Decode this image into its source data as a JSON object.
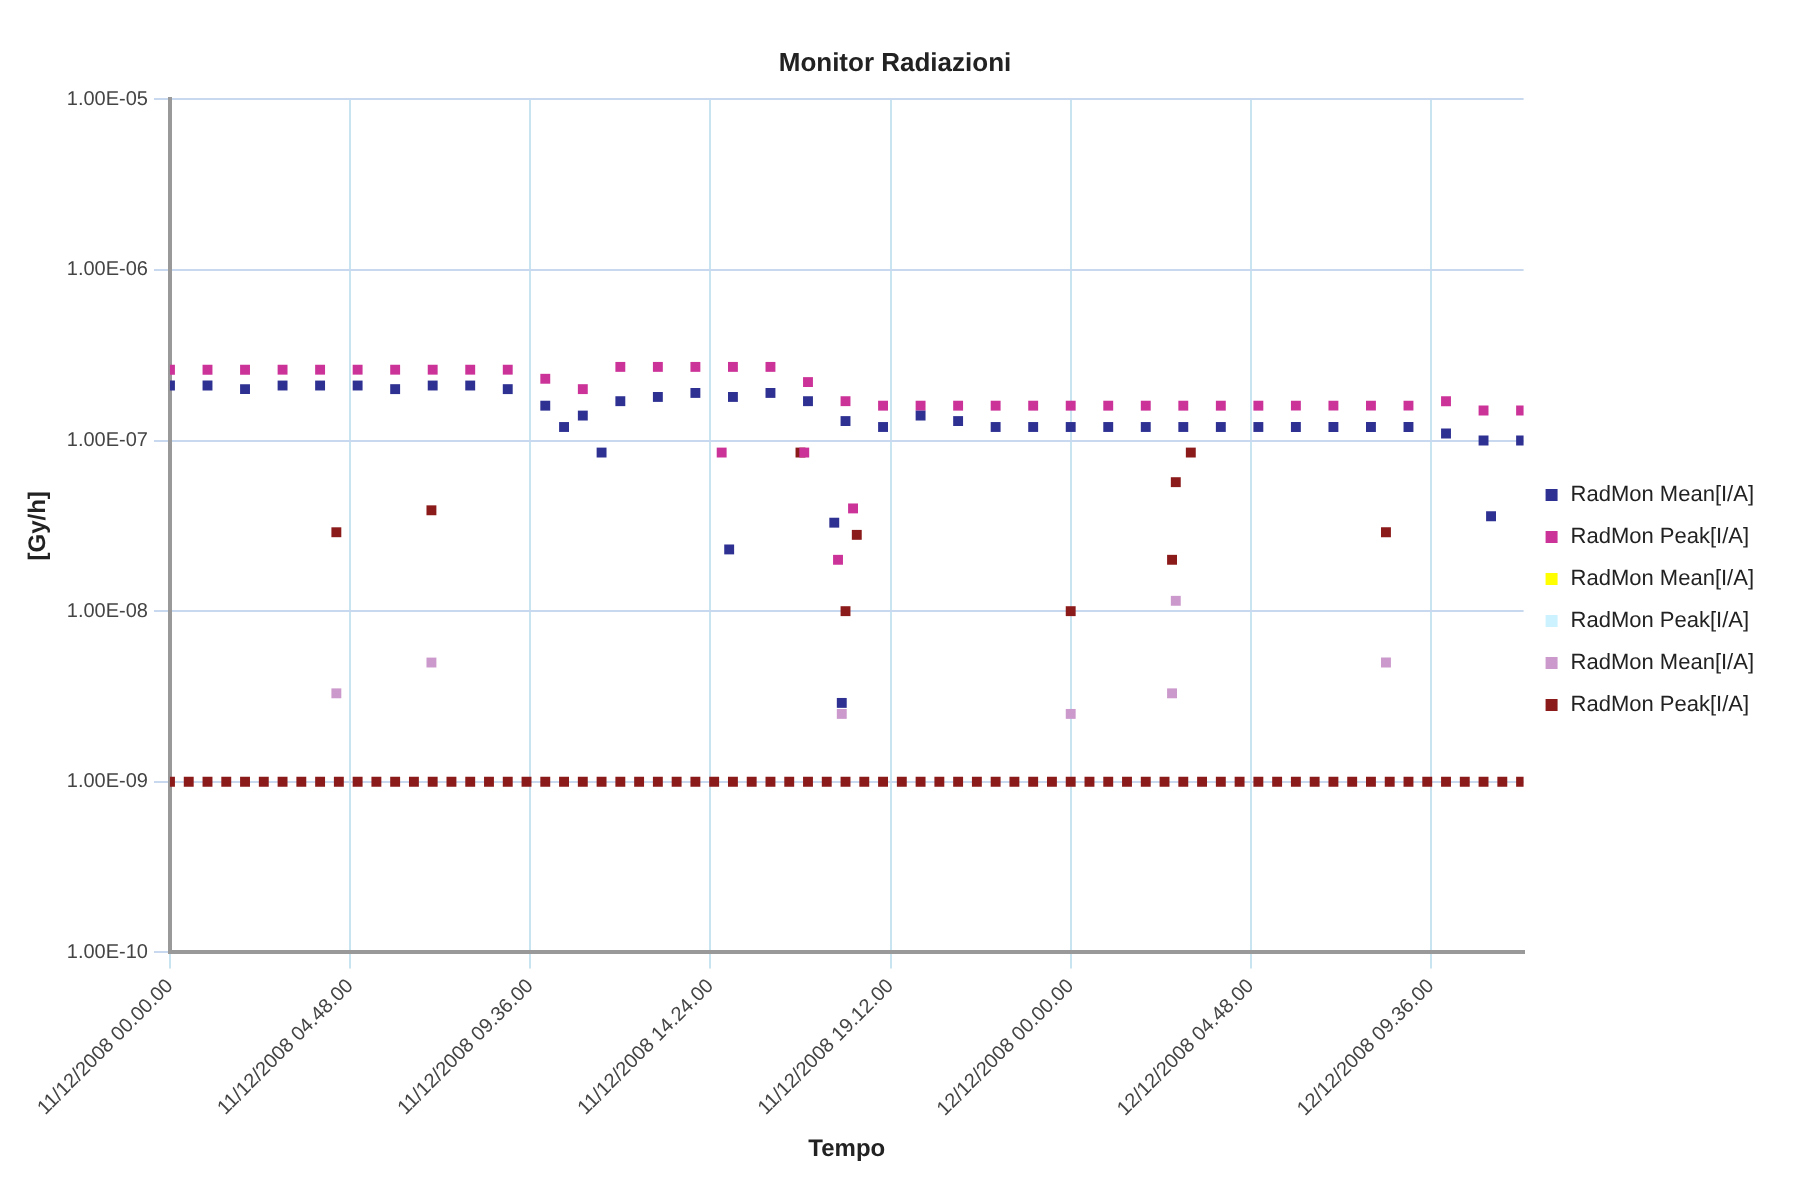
{
  "chart_data": {
    "type": "scatter",
    "title": "Monitor Radiazioni",
    "xlabel": "Tempo",
    "ylabel": "[Gy/h]",
    "log": "y",
    "grid": true,
    "legend": "right",
    "marker": "square",
    "xlim": [
      "2008-12-11T00:00",
      "2008-12-12T12:04"
    ],
    "xticks": [
      {
        "value": "2008-12-11T00:00",
        "label": "11/12/2008 00.00.00"
      },
      {
        "value": "2008-12-11T04:48",
        "label": "11/12/2008 04.48.00"
      },
      {
        "value": "2008-12-11T09:36",
        "label": "11/12/2008 09.36.00"
      },
      {
        "value": "2008-12-11T14:24",
        "label": "11/12/2008 14.24.00"
      },
      {
        "value": "2008-12-11T19:12",
        "label": "11/12/2008 19.12.00"
      },
      {
        "value": "2008-12-12T00:00",
        "label": "12/12/2008 00.00.00"
      },
      {
        "value": "2008-12-12T04:48",
        "label": "12/12/2008 04.48.00"
      },
      {
        "value": "2008-12-12T09:36",
        "label": "12/12/2008 09.36.00"
      }
    ],
    "ylim": [
      1e-10,
      1e-05
    ],
    "yticks": [
      {
        "value": 1e-10,
        "label": "1.00E-10"
      },
      {
        "value": 1e-09,
        "label": "1.00E-09"
      },
      {
        "value": 1e-08,
        "label": "1.00E-08"
      },
      {
        "value": 1e-07,
        "label": "1.00E-07"
      },
      {
        "value": 1e-06,
        "label": "1.00E-06"
      },
      {
        "value": 1e-05,
        "label": "1.00E-05"
      }
    ],
    "series": [
      {
        "name": "RadMon Mean[I/A]",
        "color": "#2e3192",
        "x": [
          "2008-12-11T00:00",
          "2008-12-11T01:00",
          "2008-12-11T02:00",
          "2008-12-11T03:00",
          "2008-12-11T04:00",
          "2008-12-11T05:00",
          "2008-12-11T06:00",
          "2008-12-11T07:00",
          "2008-12-11T08:00",
          "2008-12-11T09:00",
          "2008-12-11T10:00",
          "2008-12-11T10:30",
          "2008-12-11T11:00",
          "2008-12-11T11:30",
          "2008-12-11T12:00",
          "2008-12-11T13:00",
          "2008-12-11T14:00",
          "2008-12-11T14:54",
          "2008-12-11T15:00",
          "2008-12-11T16:00",
          "2008-12-11T17:00",
          "2008-12-11T17:42",
          "2008-12-11T17:54",
          "2008-12-11T18:00",
          "2008-12-11T19:00",
          "2008-12-11T20:00",
          "2008-12-11T21:00",
          "2008-12-11T22:00",
          "2008-12-11T23:00",
          "2008-12-12T00:00",
          "2008-12-12T01:00",
          "2008-12-12T02:00",
          "2008-12-12T03:00",
          "2008-12-12T04:00",
          "2008-12-12T05:00",
          "2008-12-12T06:00",
          "2008-12-12T07:00",
          "2008-12-12T08:00",
          "2008-12-12T09:00",
          "2008-12-12T10:00",
          "2008-12-12T11:00",
          "2008-12-12T11:12",
          "2008-12-12T12:00"
        ],
        "values": [
          2.1e-07,
          2.1e-07,
          2e-07,
          2.1e-07,
          2.1e-07,
          2.1e-07,
          2e-07,
          2.1e-07,
          2.1e-07,
          2e-07,
          1.6e-07,
          1.2e-07,
          1.4e-07,
          8.5e-08,
          1.7e-07,
          1.8e-07,
          1.9e-07,
          2.3e-08,
          1.8e-07,
          1.9e-07,
          1.7e-07,
          3.3e-08,
          2.9e-09,
          1.3e-07,
          1.2e-07,
          1.4e-07,
          1.3e-07,
          1.2e-07,
          1.2e-07,
          1.2e-07,
          1.2e-07,
          1.2e-07,
          1.2e-07,
          1.2e-07,
          1.2e-07,
          1.2e-07,
          1.2e-07,
          1.2e-07,
          1.2e-07,
          1.1e-07,
          1e-07,
          3.6e-08,
          1e-07
        ]
      },
      {
        "name": "RadMon Peak[I/A]",
        "color": "#cc3399",
        "x": [
          "2008-12-11T00:00",
          "2008-12-11T01:00",
          "2008-12-11T02:00",
          "2008-12-11T03:00",
          "2008-12-11T04:00",
          "2008-12-11T05:00",
          "2008-12-11T06:00",
          "2008-12-11T07:00",
          "2008-12-11T08:00",
          "2008-12-11T09:00",
          "2008-12-11T10:00",
          "2008-12-11T11:00",
          "2008-12-11T12:00",
          "2008-12-11T13:00",
          "2008-12-11T14:00",
          "2008-12-11T14:42",
          "2008-12-11T15:00",
          "2008-12-11T16:00",
          "2008-12-11T16:54",
          "2008-12-11T17:00",
          "2008-12-11T17:48",
          "2008-12-11T18:00",
          "2008-12-11T18:12",
          "2008-12-11T19:00",
          "2008-12-11T20:00",
          "2008-12-11T21:00",
          "2008-12-11T22:00",
          "2008-12-11T23:00",
          "2008-12-12T00:00",
          "2008-12-12T01:00",
          "2008-12-12T02:00",
          "2008-12-12T03:00",
          "2008-12-12T04:00",
          "2008-12-12T05:00",
          "2008-12-12T06:00",
          "2008-12-12T07:00",
          "2008-12-12T08:00",
          "2008-12-12T09:00",
          "2008-12-12T10:00",
          "2008-12-12T11:00",
          "2008-12-12T12:00"
        ],
        "values": [
          2.6e-07,
          2.6e-07,
          2.6e-07,
          2.6e-07,
          2.6e-07,
          2.6e-07,
          2.6e-07,
          2.6e-07,
          2.6e-07,
          2.6e-07,
          2.3e-07,
          2e-07,
          2.7e-07,
          2.7e-07,
          2.7e-07,
          8.5e-08,
          2.7e-07,
          2.7e-07,
          8.5e-08,
          2.2e-07,
          2e-08,
          1.7e-07,
          4e-08,
          1.6e-07,
          1.6e-07,
          1.6e-07,
          1.6e-07,
          1.6e-07,
          1.6e-07,
          1.6e-07,
          1.6e-07,
          1.6e-07,
          1.6e-07,
          1.6e-07,
          1.6e-07,
          1.6e-07,
          1.6e-07,
          1.6e-07,
          1.7e-07,
          1.5e-07,
          1.5e-07
        ]
      },
      {
        "name": "RadMon Mean[I/A]",
        "color": "#ffff00"
      },
      {
        "name": "RadMon Peak[I/A]",
        "color": "#ccf2ff"
      },
      {
        "name": "RadMon Mean[I/A]",
        "color": "#cc99cc",
        "x": [
          "2008-12-11T04:26",
          "2008-12-11T06:58",
          "2008-12-11T17:54",
          "2008-12-12T00:00",
          "2008-12-12T02:42",
          "2008-12-12T02:48",
          "2008-12-12T08:24"
        ],
        "values": [
          3.3e-09,
          5e-09,
          2.5e-09,
          2.5e-09,
          3.3e-09,
          1.15e-08,
          5e-09
        ]
      },
      {
        "name": "RadMon Peak[I/A]",
        "color": "#8b1a1a",
        "x": [
          "2008-12-11T00:00",
          "2008-12-11T00:30",
          "2008-12-11T01:00",
          "2008-12-11T01:30",
          "2008-12-11T02:00",
          "2008-12-11T02:30",
          "2008-12-11T03:00",
          "2008-12-11T03:30",
          "2008-12-11T04:00",
          "2008-12-11T04:26",
          "2008-12-11T04:30",
          "2008-12-11T05:00",
          "2008-12-11T05:30",
          "2008-12-11T06:00",
          "2008-12-11T06:30",
          "2008-12-11T06:58",
          "2008-12-11T07:00",
          "2008-12-11T07:30",
          "2008-12-11T08:00",
          "2008-12-11T08:30",
          "2008-12-11T09:00",
          "2008-12-11T09:30",
          "2008-12-11T10:00",
          "2008-12-11T10:30",
          "2008-12-11T11:00",
          "2008-12-11T11:30",
          "2008-12-11T12:00",
          "2008-12-11T12:30",
          "2008-12-11T13:00",
          "2008-12-11T13:30",
          "2008-12-11T14:00",
          "2008-12-11T14:30",
          "2008-12-11T15:00",
          "2008-12-11T15:30",
          "2008-12-11T16:00",
          "2008-12-11T16:30",
          "2008-12-11T16:48",
          "2008-12-11T17:00",
          "2008-12-11T17:30",
          "2008-12-11T18:00",
          "2008-12-11T18:00",
          "2008-12-11T18:18",
          "2008-12-11T18:30",
          "2008-12-11T19:00",
          "2008-12-11T19:30",
          "2008-12-11T20:00",
          "2008-12-11T20:30",
          "2008-12-11T21:00",
          "2008-12-11T21:30",
          "2008-12-11T22:00",
          "2008-12-11T22:30",
          "2008-12-11T23:00",
          "2008-12-11T23:30",
          "2008-12-12T00:00",
          "2008-12-12T00:00",
          "2008-12-12T00:30",
          "2008-12-12T01:00",
          "2008-12-12T01:30",
          "2008-12-12T02:00",
          "2008-12-12T02:30",
          "2008-12-12T02:42",
          "2008-12-12T02:48",
          "2008-12-12T03:00",
          "2008-12-12T03:12",
          "2008-12-12T03:30",
          "2008-12-12T04:00",
          "2008-12-12T04:30",
          "2008-12-12T05:00",
          "2008-12-12T05:30",
          "2008-12-12T06:00",
          "2008-12-12T06:30",
          "2008-12-12T07:00",
          "2008-12-12T07:30",
          "2008-12-12T08:00",
          "2008-12-12T08:24",
          "2008-12-12T08:30",
          "2008-12-12T09:00",
          "2008-12-12T09:30",
          "2008-12-12T10:00",
          "2008-12-12T10:30",
          "2008-12-12T11:00",
          "2008-12-12T11:30",
          "2008-12-12T12:00"
        ],
        "values": [
          1e-09,
          1e-09,
          1e-09,
          1e-09,
          1e-09,
          1e-09,
          1e-09,
          1e-09,
          1e-09,
          2.9e-08,
          1e-09,
          1e-09,
          1e-09,
          1e-09,
          1e-09,
          3.9e-08,
          1e-09,
          1e-09,
          1e-09,
          1e-09,
          1e-09,
          1e-09,
          1e-09,
          1e-09,
          1e-09,
          1e-09,
          1e-09,
          1e-09,
          1e-09,
          1e-09,
          1e-09,
          1e-09,
          1e-09,
          1e-09,
          1e-09,
          1e-09,
          8.5e-08,
          1e-09,
          1e-09,
          1e-09,
          1e-08,
          2.8e-08,
          1e-09,
          1e-09,
          1e-09,
          1e-09,
          1e-09,
          1e-09,
          1e-09,
          1e-09,
          1e-09,
          1e-09,
          1e-09,
          1e-09,
          1e-08,
          1e-09,
          1e-09,
          1e-09,
          1e-09,
          1e-09,
          2e-08,
          5.7e-08,
          1e-09,
          8.5e-08,
          1e-09,
          1e-09,
          1e-09,
          1e-09,
          1e-09,
          1e-09,
          1e-09,
          1e-09,
          1e-09,
          1e-09,
          2.9e-08,
          1e-09,
          1e-09,
          1e-09,
          1e-09,
          1e-09,
          1e-09,
          1e-09,
          1e-09
        ]
      }
    ]
  }
}
